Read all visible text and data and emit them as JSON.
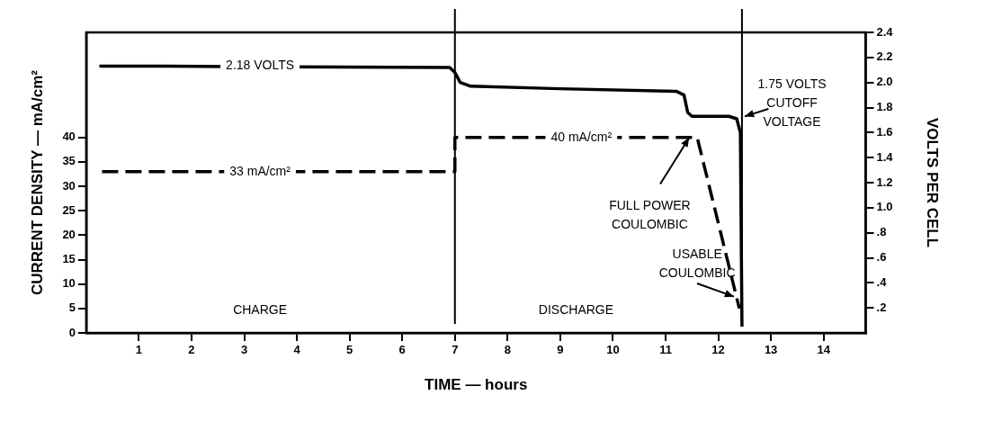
{
  "chart_data": {
    "type": "line",
    "xlabel": "TIME — hours",
    "ylabel": "CURRENT DENSITY — mA/cm²",
    "y2label": "VOLTS PER CELL",
    "xlim": [
      0,
      14.8
    ],
    "xticks": [
      1,
      2,
      3,
      4,
      5,
      6,
      7,
      8,
      9,
      10,
      11,
      12,
      13,
      14
    ],
    "ylim": [
      0,
      61.5
    ],
    "yticks": [
      0,
      5,
      10,
      15,
      20,
      25,
      30,
      35,
      40
    ],
    "y2lim": [
      0,
      2.4
    ],
    "y2ticks": [
      {
        "value": 0.2,
        "label": ".2"
      },
      {
        "value": 0.4,
        "label": ".4"
      },
      {
        "value": 0.6,
        "label": ".6"
      },
      {
        "value": 0.8,
        "label": ".8"
      },
      {
        "value": 1,
        "label": "1.0"
      },
      1.2,
      1.4,
      1.6,
      1.8,
      {
        "value": 2,
        "label": "2.0"
      },
      2.2,
      2.4
    ],
    "series": [
      {
        "color": "#000000",
        "axis": "y2",
        "line_style": "solid",
        "x": [
          0.25,
          1.5,
          6.9,
          7.0,
          7.1,
          7.3,
          9,
          11.2,
          11.35,
          11.42,
          11.5,
          12.2,
          12.35,
          12.42,
          12.45
        ],
        "values": [
          2.13,
          2.13,
          2.12,
          2.08,
          2.0,
          1.97,
          1.95,
          1.93,
          1.9,
          1.76,
          1.73,
          1.73,
          1.71,
          1.6,
          0.05
        ]
      },
      {
        "color": "#000000",
        "axis": "y",
        "line_style": "dashed",
        "x": [
          0.3,
          7.0,
          7.0,
          11.6,
          12.4
        ],
        "values": [
          33,
          33,
          40,
          40,
          5
        ]
      }
    ],
    "ref_lines": [
      {
        "axis": "x",
        "value": 7
      },
      {
        "axis": "x",
        "value": 12.45
      }
    ],
    "annotations": [
      "2.18 VOLTS",
      "33 mA/cm²",
      "40 mA/cm²",
      "CHARGE",
      "DISCHARGE",
      {
        "text": "FULL POWER\nCOULOMBIC",
        "x": 11.45,
        "y": 40
      },
      {
        "text": "USABLE\nCOULOMBIC",
        "x": 12.3,
        "y": 7.5
      },
      "1.75 VOLTS\nCUTOFF\nVOLTAGE"
    ],
    "grid": false,
    "legend": false,
    "marker": "none"
  }
}
